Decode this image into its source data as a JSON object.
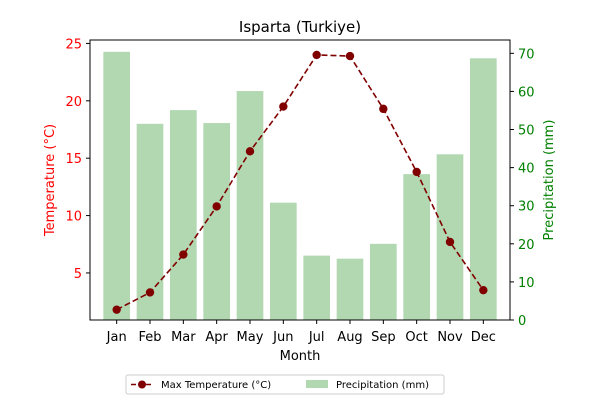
{
  "chart_data": {
    "type": "bar+line",
    "title": "Isparta (Turkiye)",
    "xlabel": "Month",
    "categories": [
      "Jan",
      "Feb",
      "Mar",
      "Apr",
      "May",
      "Jun",
      "Jul",
      "Aug",
      "Sep",
      "Oct",
      "Nov",
      "Dec"
    ],
    "left_axis": {
      "label": "Temperature (°C)",
      "ylim": [
        0.9,
        25.3
      ],
      "ticks": [
        5,
        10,
        15,
        20,
        25
      ],
      "color": "#ff0000"
    },
    "right_axis": {
      "label": "Precipitation (mm)",
      "ylim": [
        0,
        73.5
      ],
      "ticks": [
        0,
        10,
        20,
        30,
        40,
        50,
        60,
        70
      ],
      "color": "#008000"
    },
    "series": [
      {
        "name": "Max Temperature (°C)",
        "kind": "line",
        "axis": "left",
        "color": "#800000",
        "values": [
          1.8,
          3.3,
          6.6,
          10.8,
          15.6,
          19.5,
          24.0,
          23.9,
          19.3,
          13.8,
          7.7,
          3.5
        ]
      },
      {
        "name": "Precipitation (mm)",
        "kind": "bar",
        "axis": "right",
        "color": "#b2d8b2",
        "values": [
          70.4,
          51.5,
          55.1,
          51.7,
          60.1,
          30.8,
          16.9,
          16.1,
          20.0,
          38.3,
          43.5,
          68.7
        ]
      }
    ],
    "legend": {
      "placement": "bottom-center"
    }
  }
}
